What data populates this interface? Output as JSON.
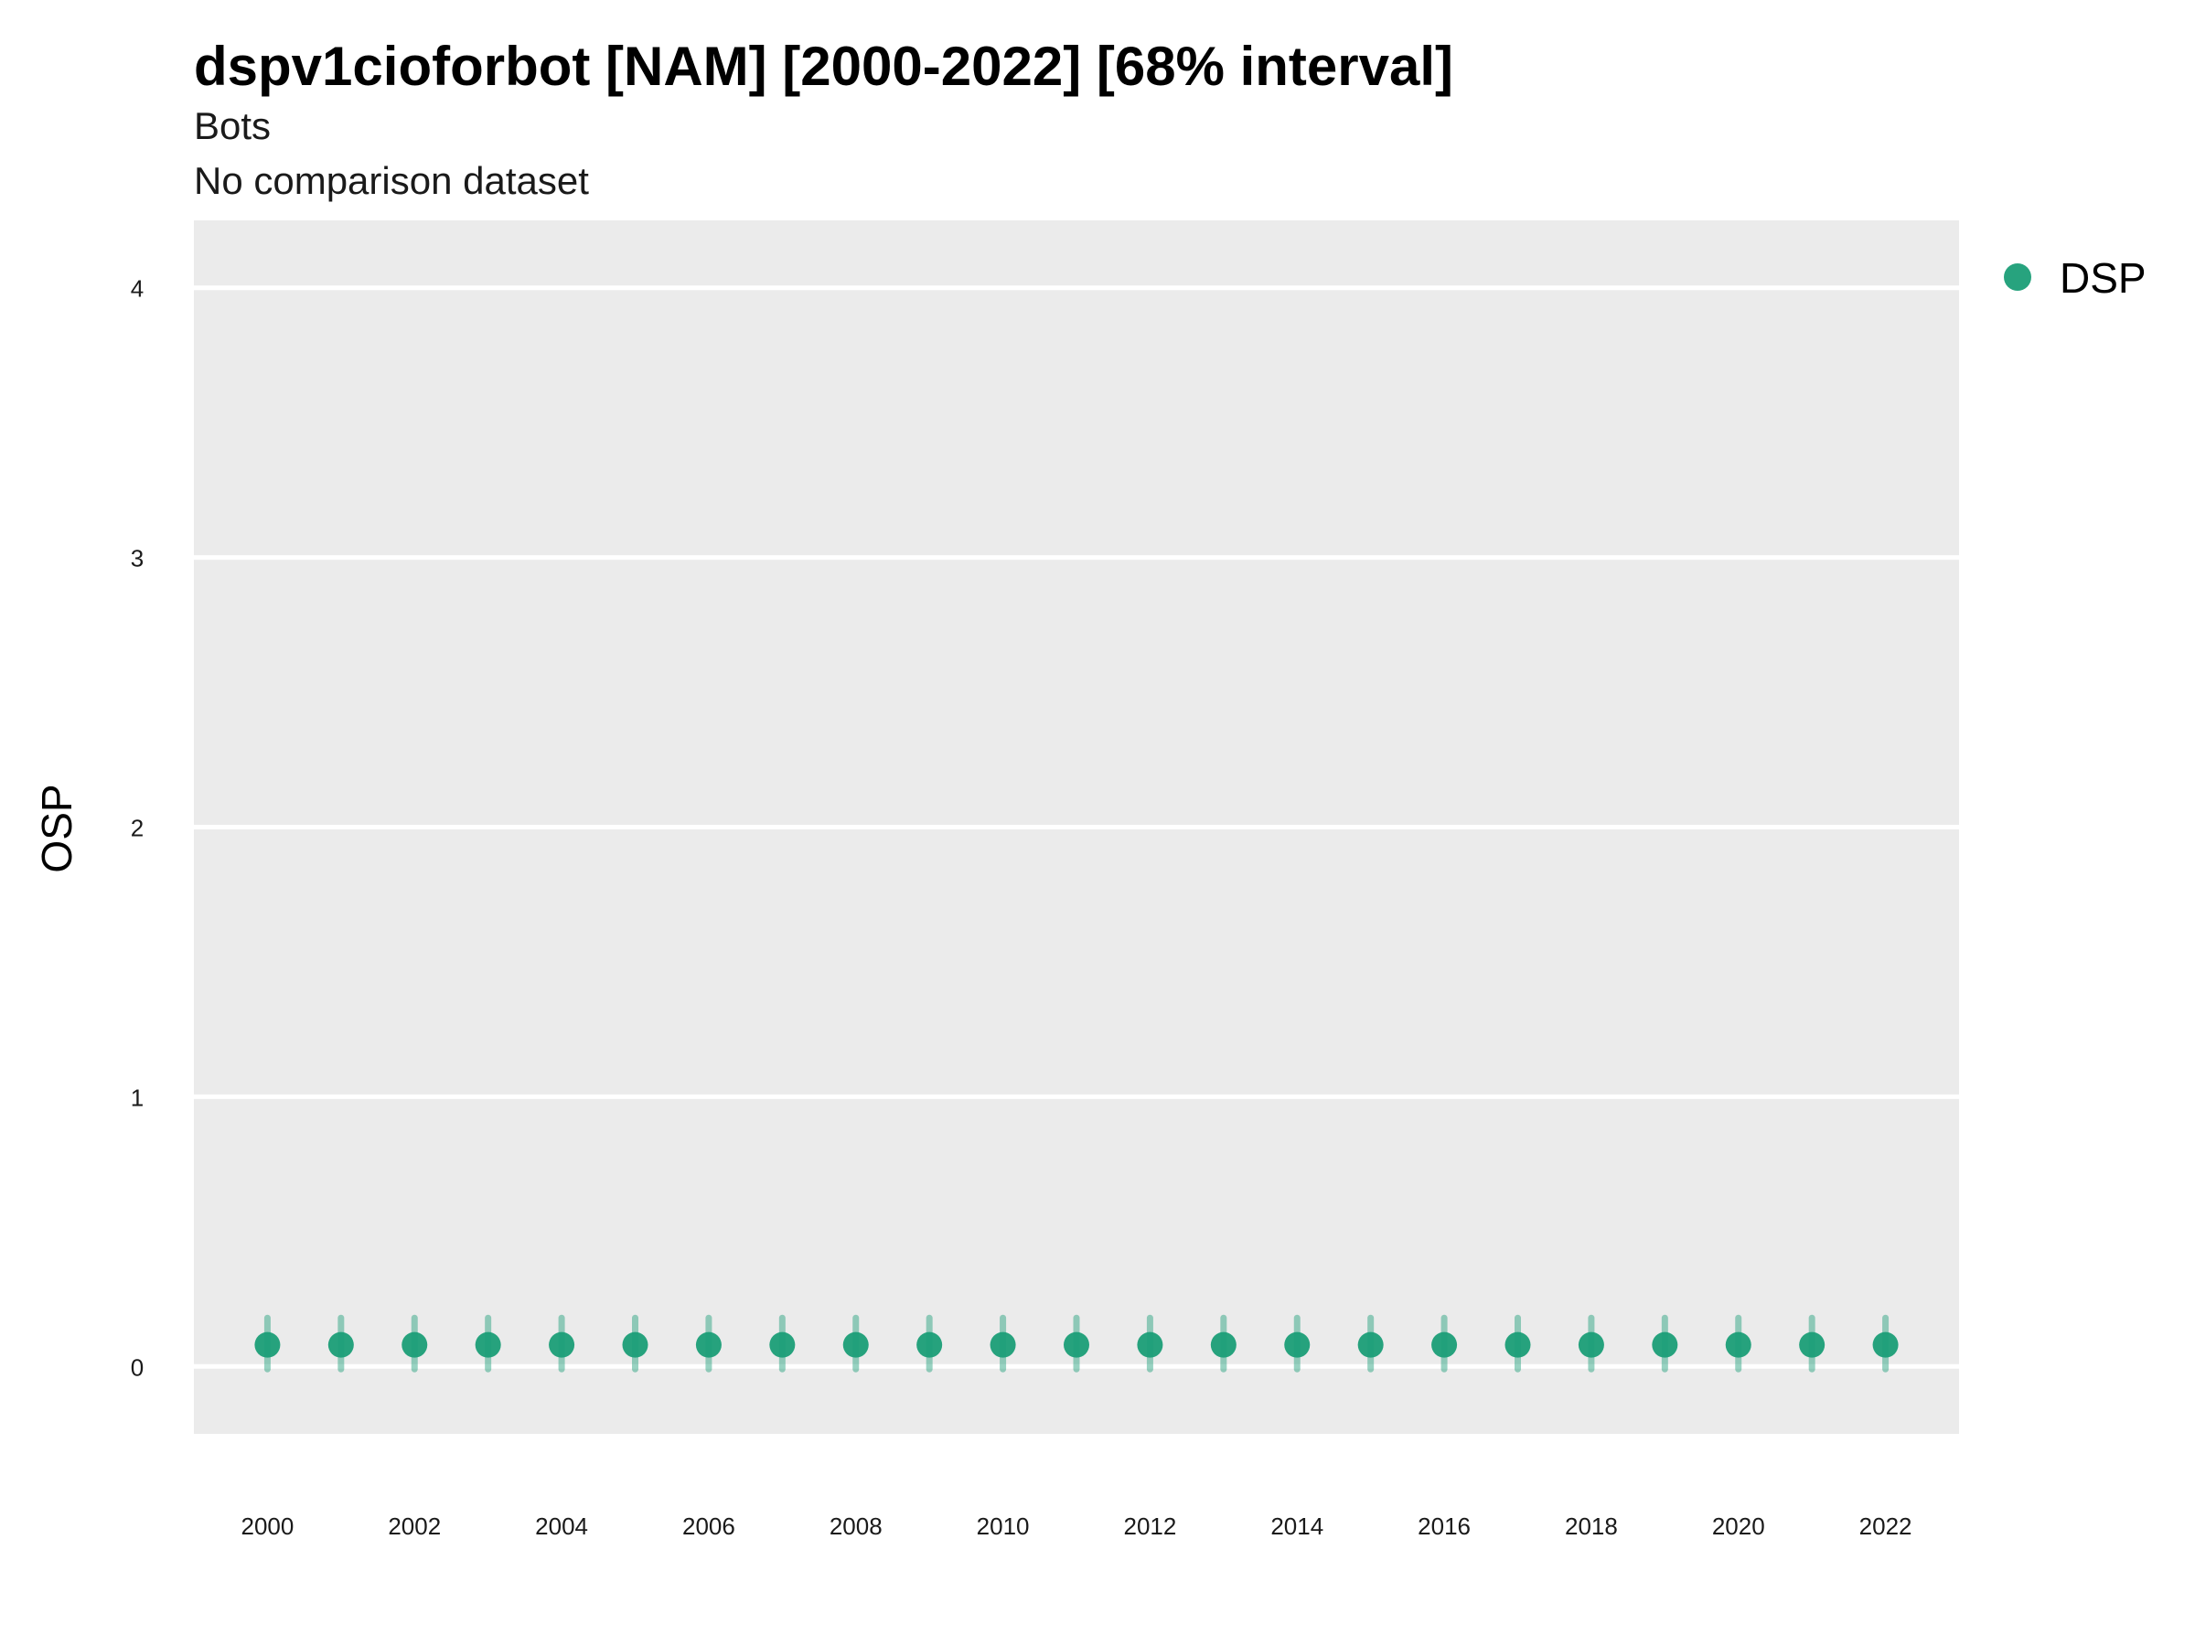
{
  "chart_data": {
    "type": "scatter",
    "title": "dspv1cioforbot [NAM] [2000-2022] [68% interval]",
    "subtitle": "Bots",
    "caption": "No comparison dataset",
    "xlabel": "",
    "ylabel": "OSP",
    "x": [
      2000,
      2001,
      2002,
      2003,
      2004,
      2005,
      2006,
      2007,
      2008,
      2009,
      2010,
      2011,
      2012,
      2013,
      2014,
      2015,
      2016,
      2017,
      2018,
      2019,
      2020,
      2021,
      2022
    ],
    "x_ticks": [
      "2000",
      "2002",
      "2004",
      "2006",
      "2008",
      "2010",
      "2012",
      "2014",
      "2016",
      "2018",
      "2020",
      "2022"
    ],
    "y_ticks": [
      "0",
      "1",
      "2",
      "3",
      "4"
    ],
    "xlim": [
      1999.0,
      2023.0
    ],
    "ylim": [
      -0.25,
      4.25
    ],
    "series": [
      {
        "name": "DSP",
        "color": "#1b9e77",
        "values": [
          0.08,
          0.08,
          0.08,
          0.08,
          0.08,
          0.08,
          0.08,
          0.08,
          0.08,
          0.08,
          0.08,
          0.08,
          0.08,
          0.08,
          0.08,
          0.08,
          0.08,
          0.08,
          0.08,
          0.08,
          0.08,
          0.08,
          0.08
        ],
        "lower": [
          -0.01,
          -0.01,
          -0.01,
          -0.01,
          -0.01,
          -0.01,
          -0.01,
          -0.01,
          -0.01,
          -0.01,
          -0.01,
          -0.01,
          -0.01,
          -0.01,
          -0.01,
          -0.01,
          -0.01,
          -0.01,
          -0.01,
          -0.01,
          -0.01,
          -0.01,
          -0.01
        ],
        "upper": [
          0.18,
          0.18,
          0.18,
          0.18,
          0.18,
          0.18,
          0.18,
          0.18,
          0.18,
          0.18,
          0.18,
          0.18,
          0.18,
          0.18,
          0.18,
          0.18,
          0.18,
          0.18,
          0.18,
          0.18,
          0.18,
          0.18,
          0.18
        ]
      }
    ],
    "interval": "68%",
    "grid": true,
    "legend_position": "right-top",
    "panel_background": "#ebebeb",
    "grid_color": "#ffffff"
  }
}
